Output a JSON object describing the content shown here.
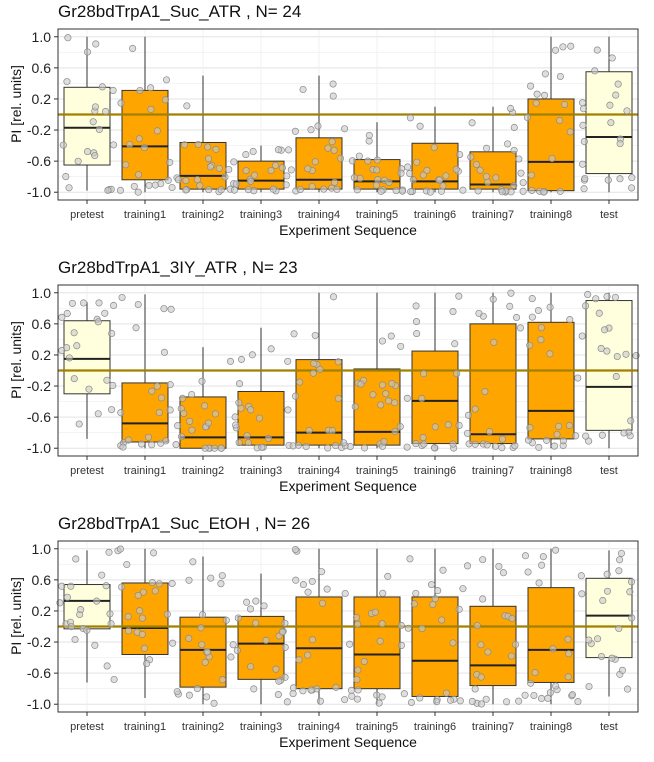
{
  "chart_data": [
    {
      "type": "box",
      "title": "Gr28bdTrpA1_Suc_ATR , N= 24",
      "xlabel": "Experiment Sequence",
      "ylabel": "PI [rel. units]",
      "ylim": [
        -1.1,
        1.1
      ],
      "yticks": [
        "1.0",
        "0.6",
        "0.2",
        "-0.2",
        "-0.6",
        "-1.0"
      ],
      "reference_line": 0,
      "grid": true,
      "categories": [
        "pretest",
        "training1",
        "training2",
        "training3",
        "training4",
        "training5",
        "training6",
        "training7",
        "training8",
        "test"
      ],
      "boxes": [
        {
          "min": -0.98,
          "q1": -0.65,
          "median": -0.17,
          "q3": 0.35,
          "max": 1.0
        },
        {
          "min": -1.0,
          "q1": -0.84,
          "median": -0.41,
          "q3": 0.31,
          "max": 1.0
        },
        {
          "min": -1.0,
          "q1": -0.96,
          "median": -0.79,
          "q3": -0.36,
          "max": 0.5
        },
        {
          "min": -1.0,
          "q1": -0.96,
          "median": -0.85,
          "q3": -0.6,
          "max": -0.4
        },
        {
          "min": -1.0,
          "q1": -0.96,
          "median": -0.84,
          "q3": -0.3,
          "max": 0.5
        },
        {
          "min": -1.0,
          "q1": -0.96,
          "median": -0.86,
          "q3": -0.58,
          "max": -0.1
        },
        {
          "min": -1.0,
          "q1": -0.96,
          "median": -0.86,
          "q3": -0.37,
          "max": 0.1
        },
        {
          "min": -1.0,
          "q1": -0.96,
          "median": -0.9,
          "q3": -0.48,
          "max": 0.1
        },
        {
          "min": -1.0,
          "q1": -0.98,
          "median": -0.61,
          "q3": 0.2,
          "max": 1.0
        },
        {
          "min": -1.0,
          "q1": -0.76,
          "median": -0.29,
          "q3": 0.55,
          "max": 1.0
        }
      ],
      "box_colors": [
        "#ffffdd",
        "#ffa500",
        "#ffa500",
        "#ffa500",
        "#ffa500",
        "#ffa500",
        "#ffa500",
        "#ffa500",
        "#ffa500",
        "#ffffdd"
      ]
    },
    {
      "type": "box",
      "title": "Gr28bdTrpA1_3IY_ATR , N= 23",
      "xlabel": "Experiment Sequence",
      "ylabel": "PI [rel. units]",
      "ylim": [
        -1.1,
        1.1
      ],
      "yticks": [
        "1.0",
        "0.6",
        "0.2",
        "-0.2",
        "-0.6",
        "-1.0"
      ],
      "reference_line": 0,
      "grid": true,
      "categories": [
        "pretest",
        "training1",
        "training2",
        "training3",
        "training4",
        "training5",
        "training6",
        "training7",
        "training8",
        "test"
      ],
      "boxes": [
        {
          "min": -0.88,
          "q1": -0.3,
          "median": 0.15,
          "q3": 0.64,
          "max": 0.88
        },
        {
          "min": -1.0,
          "q1": -0.92,
          "median": -0.68,
          "q3": -0.16,
          "max": 0.98
        },
        {
          "min": -1.0,
          "q1": -1.0,
          "median": -0.86,
          "q3": -0.34,
          "max": 0.3
        },
        {
          "min": -1.0,
          "q1": -0.96,
          "median": -0.86,
          "q3": -0.27,
          "max": 0.55
        },
        {
          "min": -1.0,
          "q1": -0.96,
          "median": -0.8,
          "q3": 0.14,
          "max": 1.0
        },
        {
          "min": -1.0,
          "q1": -0.96,
          "median": -0.79,
          "q3": 0.02,
          "max": 1.0
        },
        {
          "min": -1.0,
          "q1": -0.94,
          "median": -0.39,
          "q3": 0.25,
          "max": 1.0
        },
        {
          "min": -1.0,
          "q1": -0.94,
          "median": -0.82,
          "q3": 0.6,
          "max": 1.0
        },
        {
          "min": -1.0,
          "q1": -0.88,
          "median": -0.52,
          "q3": 0.62,
          "max": 1.0
        },
        {
          "min": -1.0,
          "q1": -0.77,
          "median": -0.21,
          "q3": 0.9,
          "max": 1.0
        }
      ],
      "box_colors": [
        "#ffffdd",
        "#ffa500",
        "#ffa500",
        "#ffa500",
        "#ffa500",
        "#ffa500",
        "#ffa500",
        "#ffa500",
        "#ffa500",
        "#ffffdd"
      ]
    },
    {
      "type": "box",
      "title": "Gr28bdTrpA1_Suc_EtOH , N= 26",
      "xlabel": "Experiment Sequence",
      "ylabel": "PI [rel. units]",
      "ylim": [
        -1.1,
        1.1
      ],
      "yticks": [
        "1.0",
        "0.6",
        "0.2",
        "-0.2",
        "-0.6",
        "-1.0"
      ],
      "reference_line": 0,
      "grid": true,
      "categories": [
        "pretest",
        "training1",
        "training2",
        "training3",
        "training4",
        "training5",
        "training6",
        "training7",
        "training8",
        "test"
      ],
      "boxes": [
        {
          "min": -0.72,
          "q1": -0.03,
          "median": 0.33,
          "q3": 0.54,
          "max": 0.98
        },
        {
          "min": -0.92,
          "q1": -0.36,
          "median": -0.02,
          "q3": 0.56,
          "max": 1.0
        },
        {
          "min": -1.0,
          "q1": -0.78,
          "median": -0.3,
          "q3": 0.12,
          "max": 0.9
        },
        {
          "min": -1.0,
          "q1": -0.68,
          "median": -0.22,
          "q3": 0.13,
          "max": 0.68
        },
        {
          "min": -1.0,
          "q1": -0.8,
          "median": -0.28,
          "q3": 0.38,
          "max": 1.0
        },
        {
          "min": -1.0,
          "q1": -0.8,
          "median": -0.36,
          "q3": 0.38,
          "max": 1.0
        },
        {
          "min": -1.0,
          "q1": -0.9,
          "median": -0.44,
          "q3": 0.38,
          "max": 1.0
        },
        {
          "min": -1.0,
          "q1": -0.76,
          "median": -0.5,
          "q3": 0.26,
          "max": 1.0
        },
        {
          "min": -1.0,
          "q1": -0.72,
          "median": -0.3,
          "q3": 0.5,
          "max": 1.0
        },
        {
          "min": -0.9,
          "q1": -0.4,
          "median": 0.14,
          "q3": 0.62,
          "max": 0.98
        }
      ],
      "box_colors": [
        "#ffffdd",
        "#ffa500",
        "#ffa500",
        "#ffa500",
        "#ffa500",
        "#ffa500",
        "#ffa500",
        "#ffa500",
        "#ffa500",
        "#ffffdd"
      ]
    }
  ],
  "colors": {
    "reference_line": "#a08000",
    "box_stroke": "#333333",
    "point_fill": "#c8c8c8",
    "point_stroke": "#8a8a8a"
  }
}
